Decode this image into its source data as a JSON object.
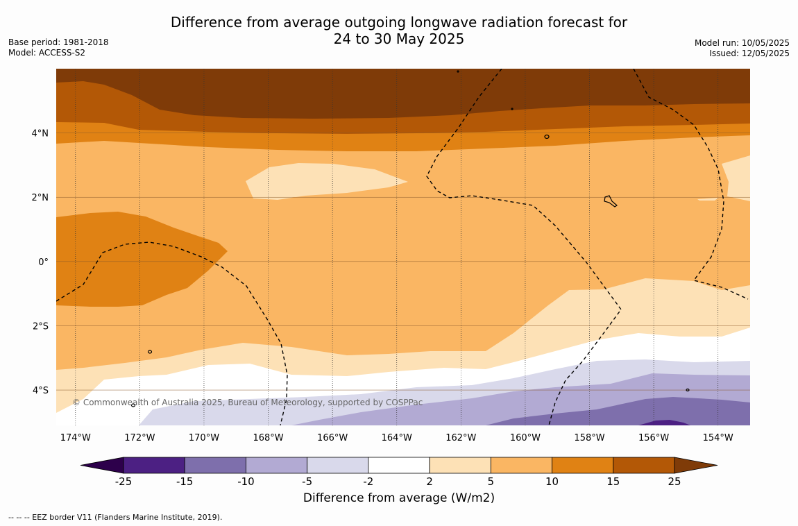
{
  "header": {
    "title_line1": "Difference from average outgoing longwave radiation forecast for",
    "title_line2": "24 to 30 May 2025"
  },
  "meta_left": {
    "base_period": "Base period: 1981-2018",
    "model": "Model: ACCESS-S2"
  },
  "meta_right": {
    "model_run": "Model run: 10/05/2025",
    "issued": "Issued: 12/05/2025"
  },
  "map": {
    "lon_labels": [
      "174°W",
      "172°W",
      "170°W",
      "168°W",
      "166°W",
      "164°W",
      "162°W",
      "160°W",
      "158°W",
      "156°W",
      "154°W"
    ],
    "lat_labels": [
      "4°N",
      "2°N",
      "0°",
      "2°S",
      "4°S"
    ],
    "copyright": "© Commonwealth of Australia 2025, Bureau of Meteorology, supported by COSPPac",
    "lon_range": [
      -174.6,
      -153.0
    ],
    "lat_range": [
      -5.1,
      6.0
    ]
  },
  "colorbar": {
    "ticks": [
      "-25",
      "-15",
      "-10",
      "-5",
      "-2",
      "2",
      "5",
      "10",
      "15",
      "25"
    ],
    "colors": [
      "#4c2083",
      "#7e6fac",
      "#b2aad3",
      "#d9d9eb",
      "#ffffff",
      "#fde1b6",
      "#fab663",
      "#e08214",
      "#b35806"
    ],
    "under_color": "#2d004b",
    "over_color": "#7f3b08",
    "label": "Difference from average (W/m2)"
  },
  "footnote": "--  --  -- EEZ border V11 (Flanders Marine Institute, 2019)."
}
